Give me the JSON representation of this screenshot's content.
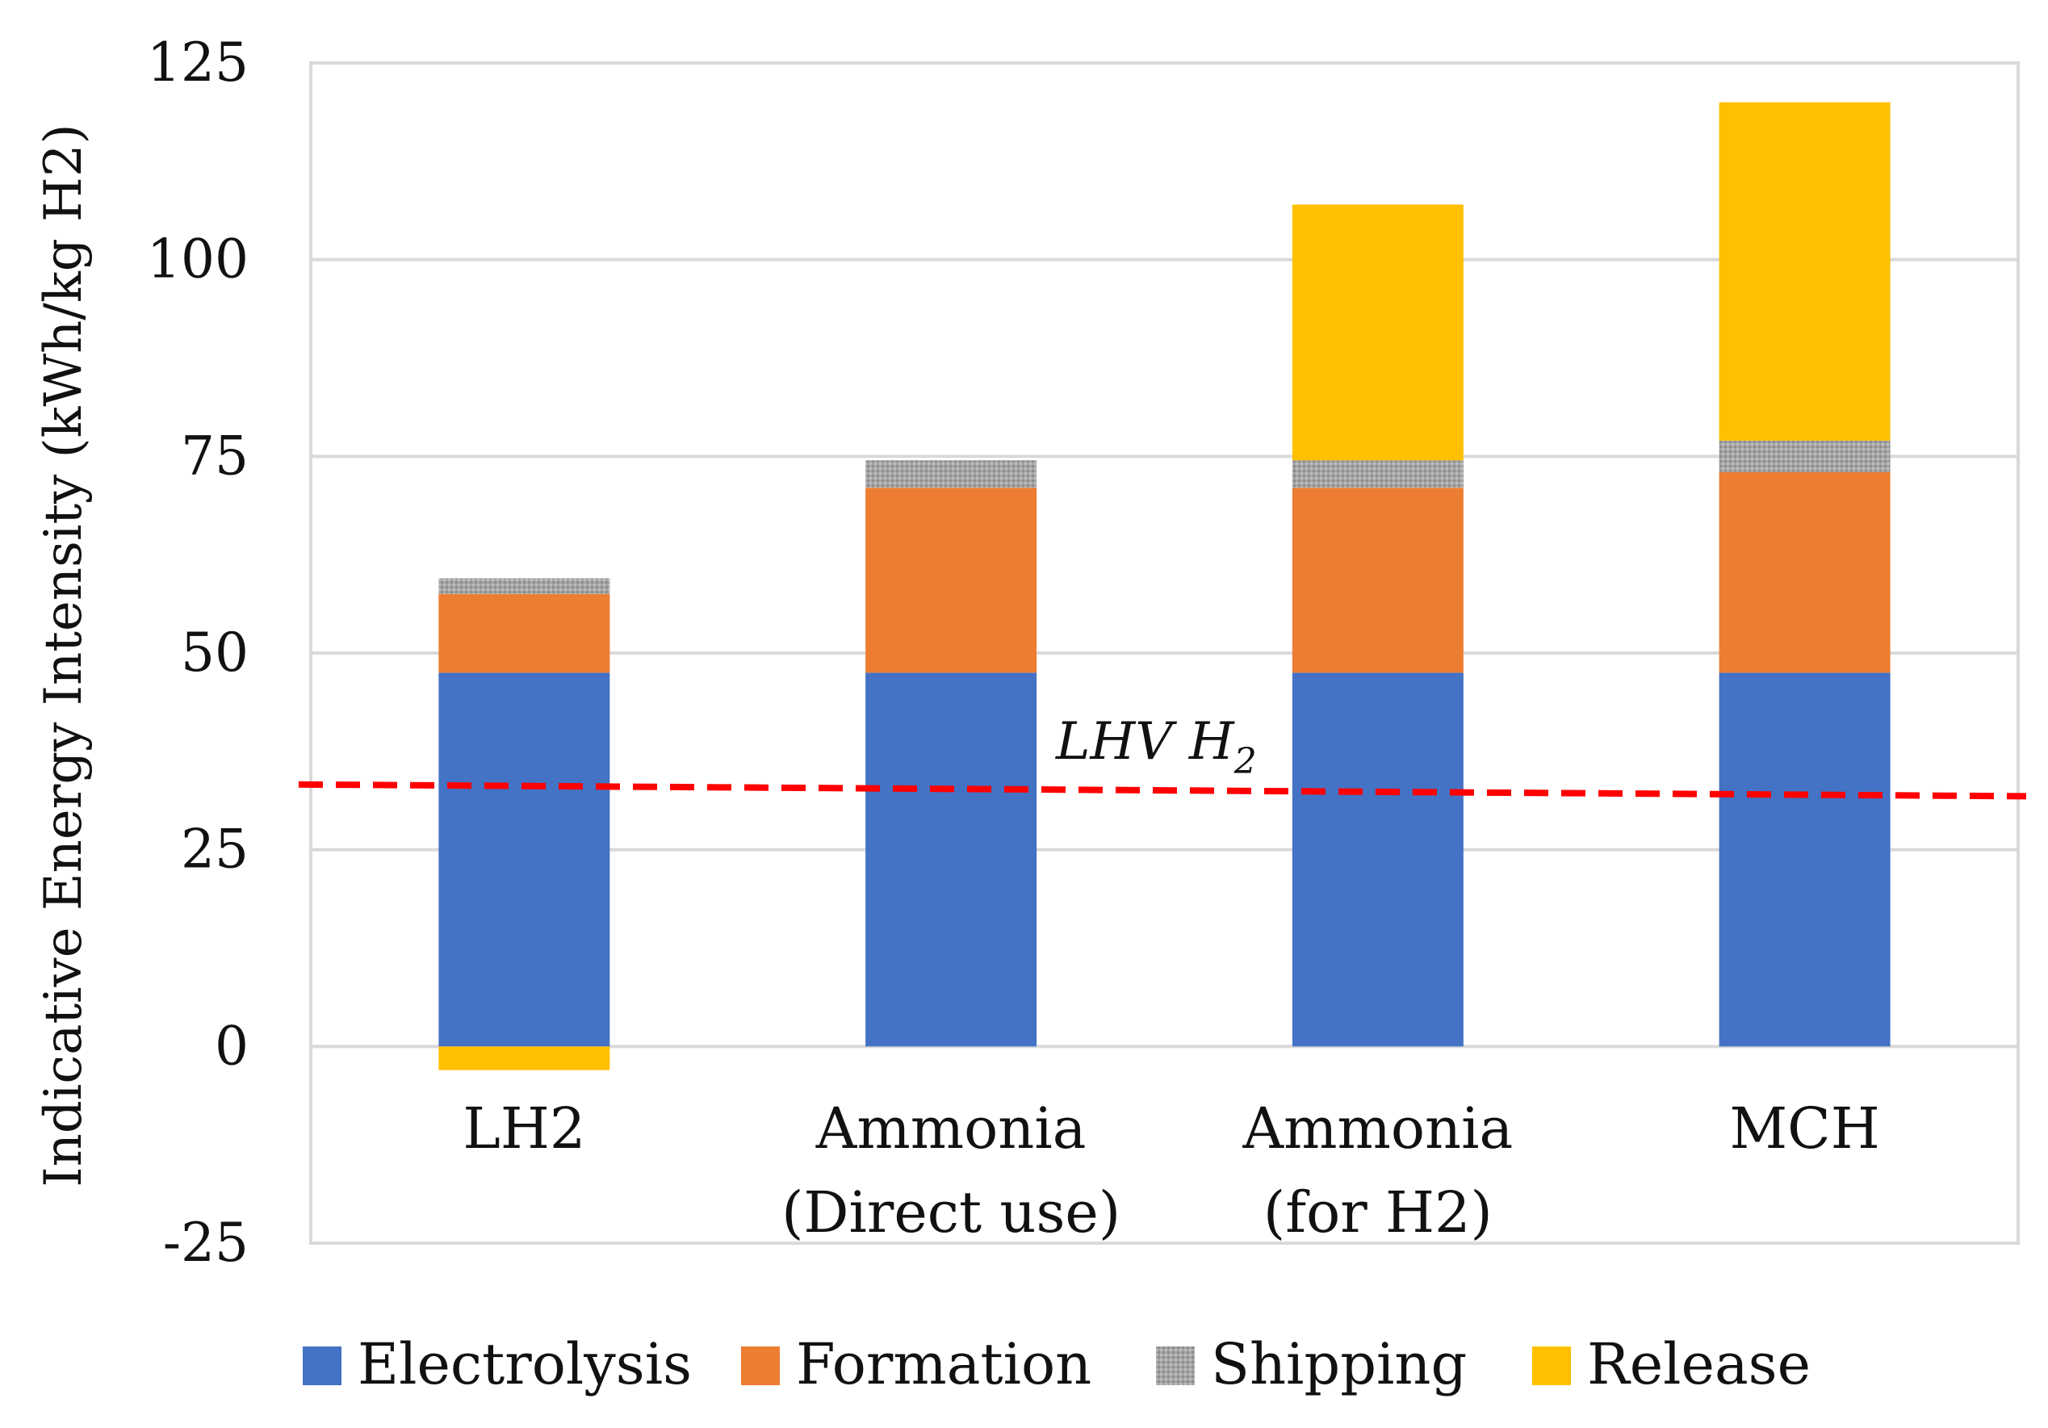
{
  "chart_data": {
    "type": "bar",
    "stacked": true,
    "title": "",
    "xlabel": "",
    "ylabel": "Indicative Energy Intensity (kWh/kg H2)",
    "ylim": [
      -25,
      125
    ],
    "yticks": [
      -25,
      0,
      25,
      50,
      75,
      100,
      125
    ],
    "ytick_labels": [
      "-25",
      "0",
      "25",
      "50",
      "75",
      "100",
      "125"
    ],
    "grid": true,
    "legend_position": "bottom",
    "categories": [
      [
        "LH2"
      ],
      [
        "Ammonia",
        "(Direct use)"
      ],
      [
        "Ammonia",
        "(for H2)"
      ],
      [
        "MCH"
      ]
    ],
    "series": [
      {
        "name": "Electrolysis",
        "color": "#4472C4",
        "values": [
          47.5,
          47.5,
          47.5,
          47.5
        ]
      },
      {
        "name": "Formation",
        "color": "#ED7D31",
        "values": [
          10,
          23.5,
          23.5,
          25.5
        ]
      },
      {
        "name": "Shipping",
        "color": "#A5A5A5",
        "values": [
          2,
          3.5,
          3.5,
          4
        ]
      },
      {
        "name": "Release",
        "color": "#FFC000",
        "values": [
          -3,
          0,
          32.5,
          43
        ]
      }
    ],
    "reference_line": {
      "label_main": "LHV H",
      "label_sub": "2",
      "value_start": 33.3,
      "value_end": 31.8,
      "color": "#FF0000"
    }
  }
}
